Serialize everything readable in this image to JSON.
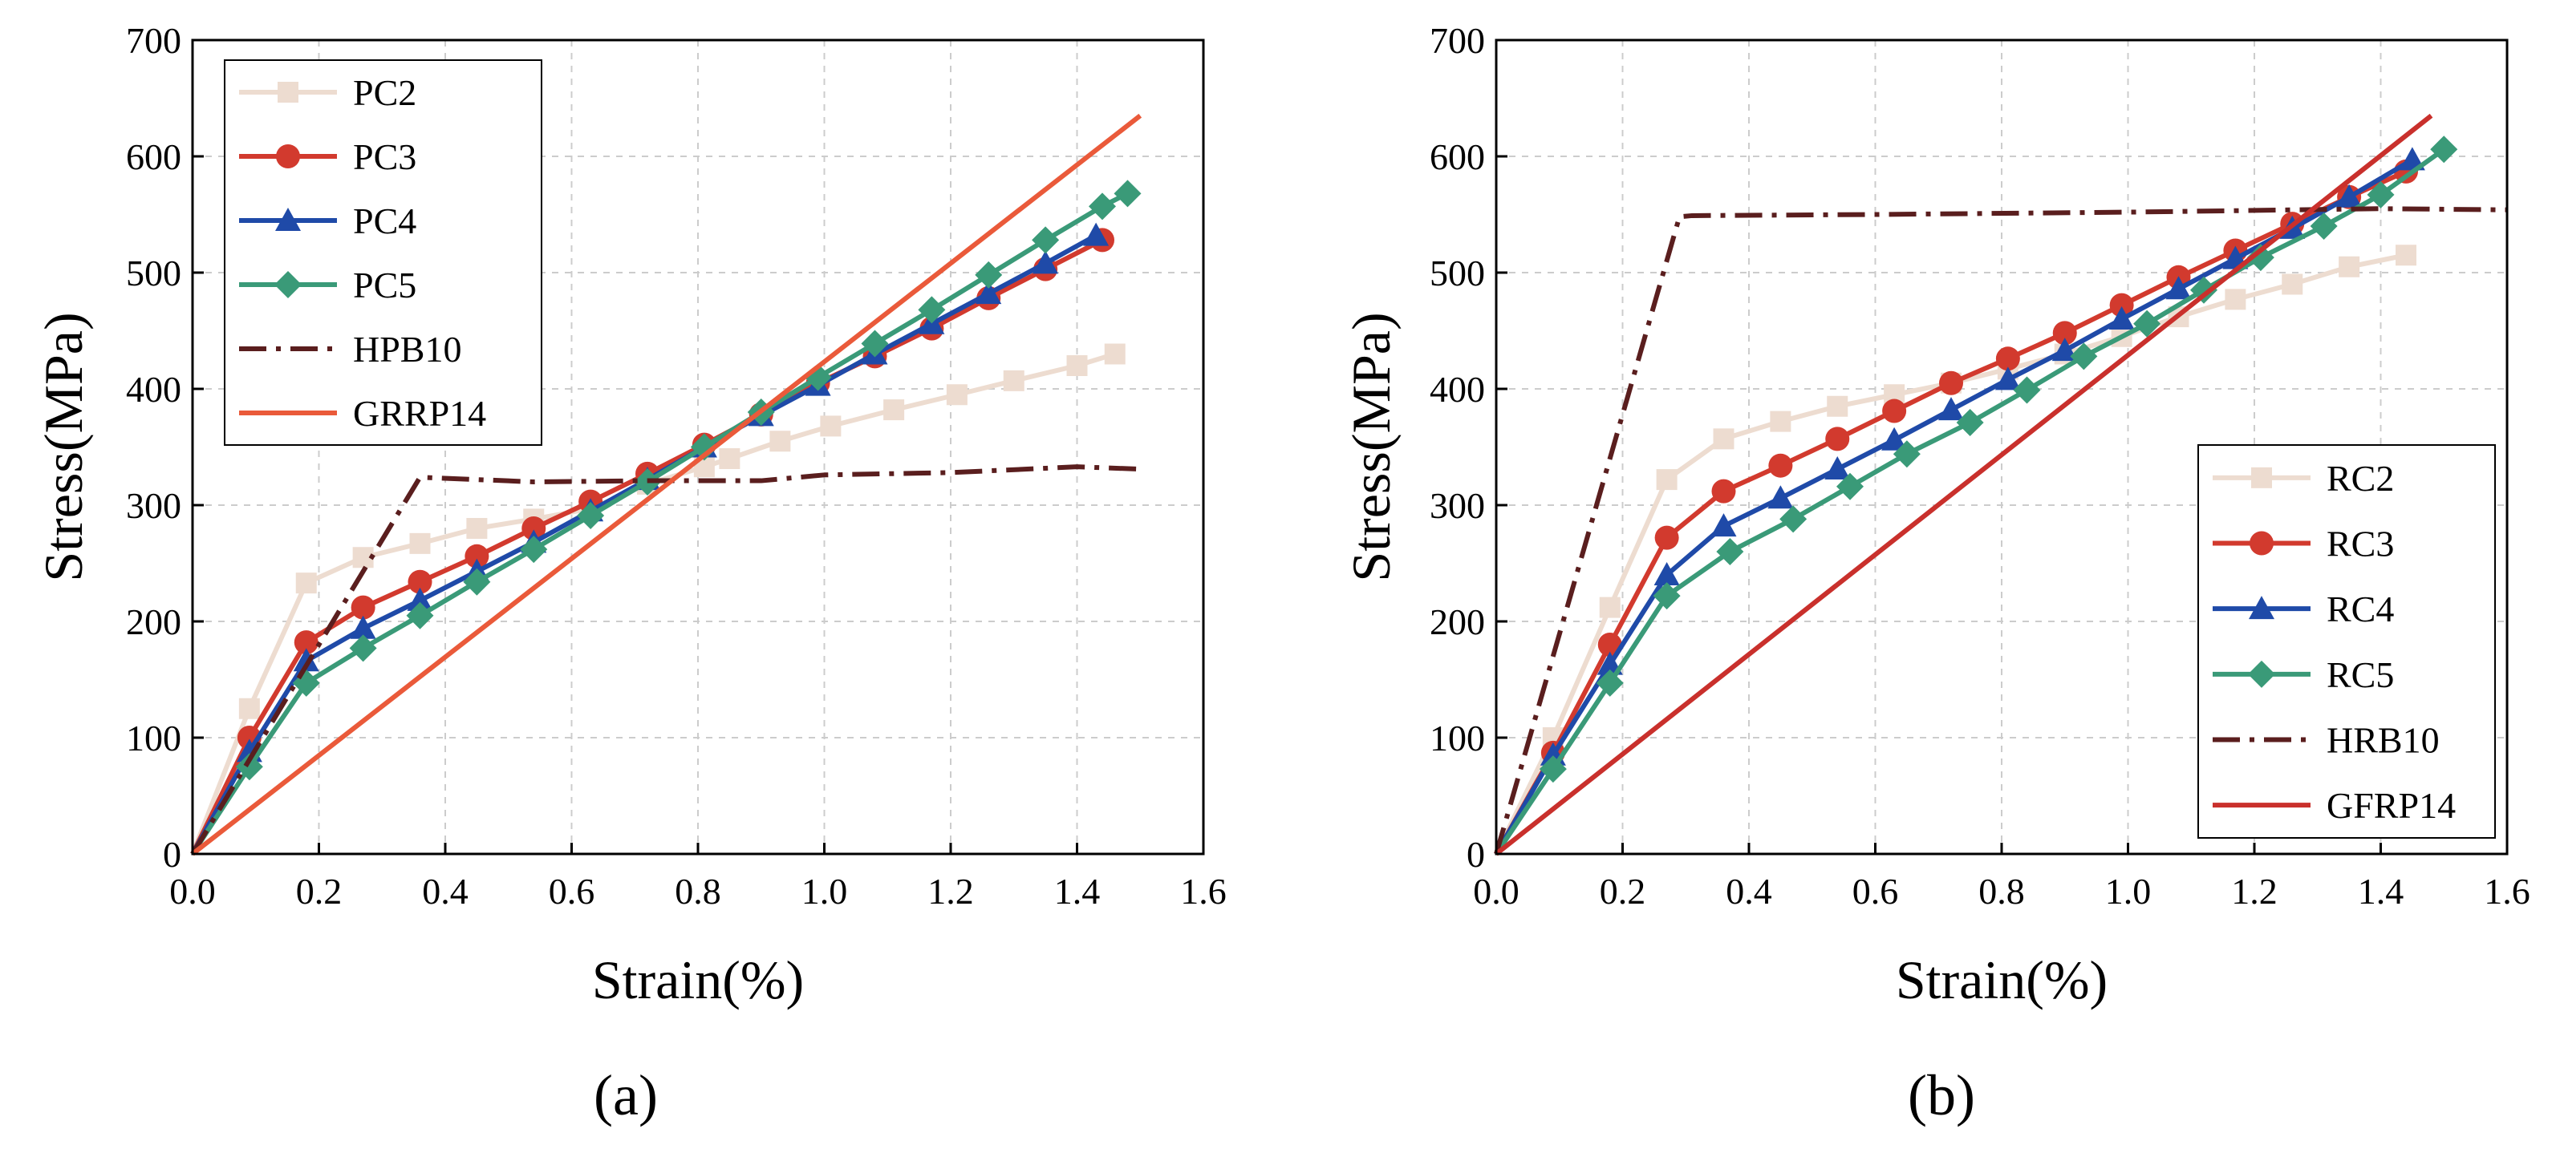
{
  "chart_data": [
    {
      "type": "line",
      "caption": "(a)",
      "xlabel": "Strain(%)",
      "ylabel": "Stress(MPa)",
      "xlim": [
        0.0,
        1.6
      ],
      "ylim": [
        0,
        700
      ],
      "xticks": [
        "0.0",
        "0.2",
        "0.4",
        "0.6",
        "0.8",
        "1.0",
        "1.2",
        "1.4",
        "1.6"
      ],
      "yticks": [
        "0",
        "100",
        "200",
        "300",
        "400",
        "500",
        "600",
        "700"
      ],
      "grid": true,
      "legend": "top-left",
      "series": [
        {
          "name": "PC2",
          "color": "#eddcd0",
          "marker": "square",
          "dash": "solid",
          "x": [
            0,
            0.09,
            0.18,
            0.27,
            0.36,
            0.45,
            0.54,
            0.63,
            0.72,
            0.81,
            0.85,
            0.93,
            1.01,
            1.11,
            1.21,
            1.3,
            1.4,
            1.46
          ],
          "y": [
            0,
            125,
            233,
            255,
            267,
            280,
            288,
            297,
            318,
            333,
            340,
            355,
            368,
            382,
            395,
            407,
            420,
            430
          ]
        },
        {
          "name": "PC3",
          "color": "#d23a2e",
          "marker": "circle",
          "dash": "solid",
          "x": [
            0,
            0.09,
            0.18,
            0.27,
            0.36,
            0.45,
            0.54,
            0.63,
            0.72,
            0.81,
            0.9,
            0.99,
            1.08,
            1.17,
            1.26,
            1.35,
            1.44
          ],
          "y": [
            0,
            100,
            182,
            212,
            234,
            256,
            280,
            303,
            327,
            352,
            378,
            405,
            428,
            452,
            478,
            503,
            528
          ]
        },
        {
          "name": "PC4",
          "color": "#1f4aa8",
          "marker": "triangle",
          "dash": "solid",
          "x": [
            0,
            0.09,
            0.18,
            0.27,
            0.36,
            0.45,
            0.54,
            0.63,
            0.72,
            0.81,
            0.9,
            0.99,
            1.08,
            1.17,
            1.26,
            1.35,
            1.43
          ],
          "y": [
            0,
            88,
            166,
            194,
            218,
            243,
            268,
            295,
            322,
            350,
            377,
            403,
            430,
            456,
            482,
            508,
            532
          ]
        },
        {
          "name": "PC5",
          "color": "#3a9a78",
          "marker": "diamond",
          "dash": "solid",
          "x": [
            0,
            0.09,
            0.18,
            0.27,
            0.36,
            0.45,
            0.54,
            0.63,
            0.72,
            0.81,
            0.9,
            0.99,
            1.08,
            1.17,
            1.26,
            1.35,
            1.44,
            1.48
          ],
          "y": [
            0,
            75,
            147,
            177,
            205,
            234,
            262,
            291,
            320,
            350,
            380,
            410,
            439,
            468,
            498,
            528,
            557,
            568
          ]
        },
        {
          "name": "HPB10",
          "color": "#5a1e1e",
          "marker": "none",
          "dash": "dashdot",
          "x": [
            0,
            0.36,
            0.54,
            0.72,
            0.9,
            1.0,
            1.2,
            1.4,
            1.5
          ],
          "y": [
            0,
            324,
            320,
            321,
            321,
            326,
            328,
            333,
            331
          ]
        },
        {
          "name": "GRRP14",
          "color": "#ea5a3a",
          "marker": "none",
          "dash": "solid",
          "x": [
            0,
            1.5
          ],
          "y": [
            0,
            635
          ]
        }
      ]
    },
    {
      "type": "line",
      "caption": "(b)",
      "xlabel": "Strain(%)",
      "ylabel": "Stress(MPa)",
      "xlim": [
        0.0,
        1.6
      ],
      "ylim": [
        0,
        700
      ],
      "xticks": [
        "0.0",
        "0.2",
        "0.4",
        "0.6",
        "0.8",
        "1.0",
        "1.2",
        "1.4",
        "1.6"
      ],
      "yticks": [
        "0",
        "100",
        "200",
        "300",
        "400",
        "500",
        "600",
        "700"
      ],
      "grid": true,
      "legend": "bottom-right",
      "series": [
        {
          "name": "RC2",
          "color": "#eddcd0",
          "marker": "square",
          "dash": "solid",
          "x": [
            0,
            0.09,
            0.18,
            0.27,
            0.36,
            0.45,
            0.54,
            0.63,
            0.72,
            0.81,
            0.9,
            0.99,
            1.08,
            1.17,
            1.26,
            1.35,
            1.44
          ],
          "y": [
            0,
            100,
            212,
            322,
            357,
            372,
            385,
            395,
            405,
            417,
            430,
            445,
            462,
            477,
            490,
            505,
            515
          ]
        },
        {
          "name": "RC3",
          "color": "#d23a2e",
          "marker": "circle",
          "dash": "solid",
          "x": [
            0,
            0.09,
            0.18,
            0.27,
            0.36,
            0.45,
            0.54,
            0.63,
            0.72,
            0.81,
            0.9,
            0.99,
            1.08,
            1.17,
            1.26,
            1.35,
            1.44
          ],
          "y": [
            0,
            87,
            180,
            272,
            312,
            334,
            357,
            381,
            405,
            426,
            448,
            472,
            496,
            519,
            542,
            565,
            587
          ]
        },
        {
          "name": "RC4",
          "color": "#1f4aa8",
          "marker": "triangle",
          "dash": "solid",
          "x": [
            0,
            0.09,
            0.18,
            0.27,
            0.36,
            0.45,
            0.54,
            0.63,
            0.72,
            0.81,
            0.9,
            0.99,
            1.08,
            1.17,
            1.26,
            1.35,
            1.45
          ],
          "y": [
            0,
            85,
            163,
            240,
            282,
            306,
            331,
            356,
            382,
            408,
            433,
            460,
            486,
            512,
            538,
            565,
            597
          ]
        },
        {
          "name": "RC5",
          "color": "#3a9a78",
          "marker": "diamond",
          "dash": "solid",
          "x": [
            0,
            0.09,
            0.18,
            0.27,
            0.37,
            0.47,
            0.56,
            0.65,
            0.75,
            0.84,
            0.93,
            1.03,
            1.12,
            1.21,
            1.31,
            1.4,
            1.5
          ],
          "y": [
            0,
            73,
            147,
            222,
            260,
            288,
            316,
            344,
            371,
            399,
            428,
            456,
            485,
            513,
            540,
            567,
            606
          ]
        },
        {
          "name": "HRB10",
          "color": "#5a1e1e",
          "marker": "none",
          "dash": "dashdot",
          "x": [
            0,
            0.29,
            0.31,
            0.6,
            1.0,
            1.4,
            1.6
          ],
          "y": [
            0,
            548,
            549,
            550,
            552,
            555,
            554
          ]
        },
        {
          "name": "GFRP14",
          "color": "#c9302c",
          "marker": "none",
          "dash": "solid",
          "x": [
            0,
            1.48
          ],
          "y": [
            0,
            635
          ]
        }
      ]
    }
  ]
}
